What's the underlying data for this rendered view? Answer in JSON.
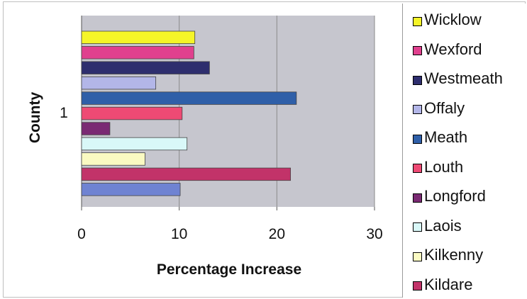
{
  "chart_data": {
    "type": "bar",
    "orientation": "horizontal",
    "title": "",
    "xlabel": "Percentage Increase",
    "ylabel": "County",
    "categories": [
      "1"
    ],
    "xlim": [
      0,
      30
    ],
    "xticks": [
      "0",
      "10",
      "20",
      "30"
    ],
    "grid": true,
    "legend_position": "right",
    "series": [
      {
        "name": "Wicklow",
        "value": 11.6,
        "color": "#f5f528"
      },
      {
        "name": "Wexford",
        "value": 11.5,
        "color": "#e0408e"
      },
      {
        "name": "Westmeath",
        "value": 13.1,
        "color": "#2e2e6e"
      },
      {
        "name": "Offaly",
        "value": 7.6,
        "color": "#b3b6e8"
      },
      {
        "name": "Meath",
        "value": 22.0,
        "color": "#2f5fa8"
      },
      {
        "name": "Louth",
        "value": 10.3,
        "color": "#ee4a74"
      },
      {
        "name": "Longford",
        "value": 2.9,
        "color": "#7a2a73"
      },
      {
        "name": "Laois",
        "value": 10.8,
        "color": "#d9f8f8"
      },
      {
        "name": "Kilkenny",
        "value": 6.5,
        "color": "#fafac2"
      },
      {
        "name": "Kildare",
        "value": 21.4,
        "color": "#c23369"
      },
      {
        "name": "",
        "value": 10.1,
        "color": "#6f83d2"
      }
    ]
  },
  "colors": {
    "plot_background": "#c6c6ce",
    "gridline": "#8a8a8a"
  }
}
